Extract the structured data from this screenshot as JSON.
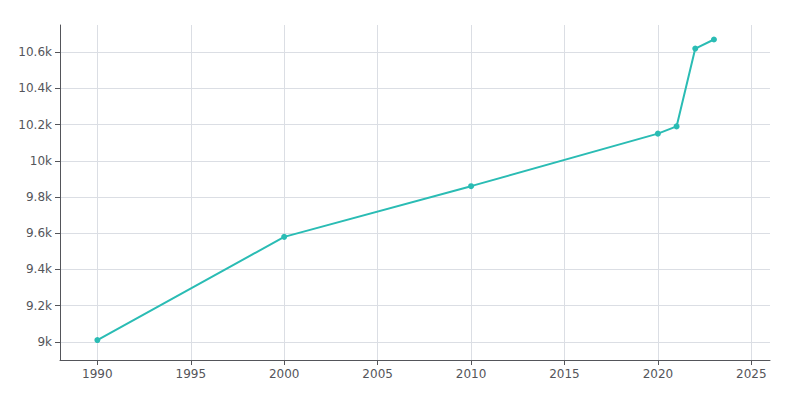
{
  "chart_data": {
    "type": "line",
    "x": [
      1990,
      2000,
      2010,
      2020,
      2021,
      2022,
      2023
    ],
    "values": [
      9010,
      9580,
      9860,
      10150,
      10190,
      10620,
      10670
    ],
    "color": "#2abcb4",
    "marker": "circle",
    "xlim": [
      1988,
      2026
    ],
    "xticks": [
      1990,
      1995,
      2000,
      2005,
      2010,
      2015,
      2020,
      2025
    ],
    "ylim": [
      8900,
      10750
    ],
    "yticks": [
      {
        "value": 9000,
        "label": "9k"
      },
      {
        "value": 9200,
        "label": "9.2k"
      },
      {
        "value": 9400,
        "label": "9.4k"
      },
      {
        "value": 9600,
        "label": "9.6k"
      },
      {
        "value": 9800,
        "label": "9.8k"
      },
      {
        "value": 10000,
        "label": "10k"
      },
      {
        "value": 10200,
        "label": "10.2k"
      },
      {
        "value": 10400,
        "label": "10.4k"
      },
      {
        "value": 10600,
        "label": "10.6k"
      }
    ],
    "grid": true
  }
}
